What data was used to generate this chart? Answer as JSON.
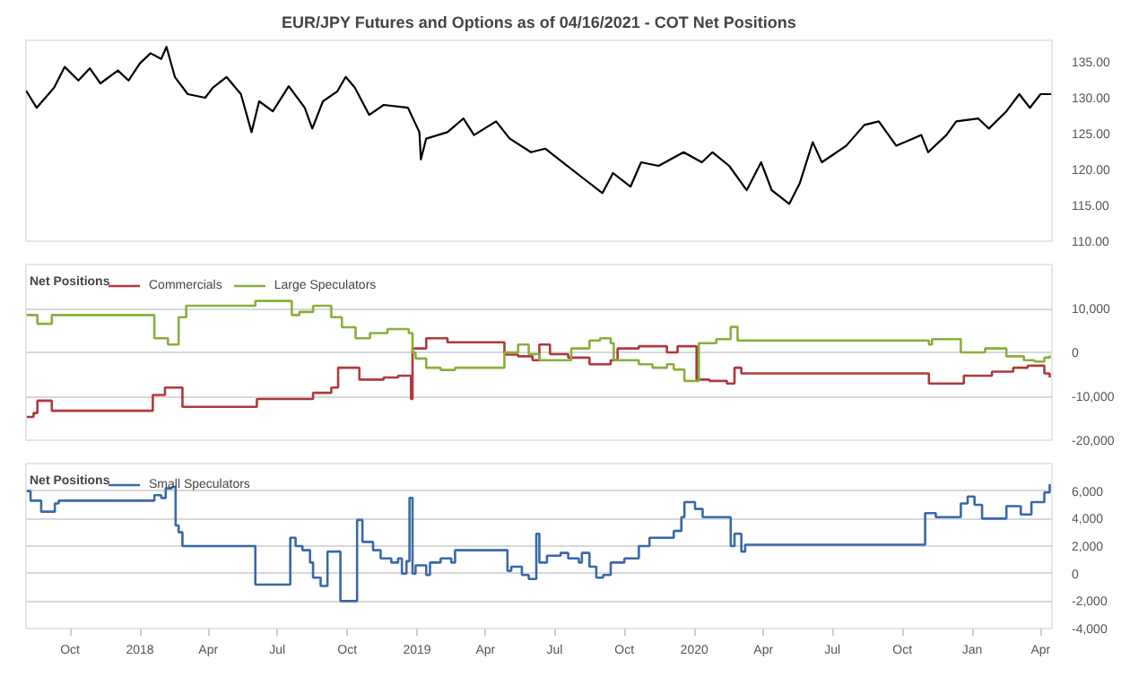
{
  "chart_data": [
    {
      "type": "line",
      "title": "EUR/JPY Futures and Options as of 04/16/2021 - COT Net Positions",
      "xlim": [
        "2017-08-04",
        "2021-04-16"
      ],
      "ylim": [
        110,
        138
      ],
      "yticks": [
        {
          "value": 110,
          "label": "110.00"
        },
        {
          "value": 115,
          "label": "115.00"
        },
        {
          "value": 120,
          "label": "120.00"
        },
        {
          "value": 125,
          "label": "125.00"
        },
        {
          "value": 130,
          "label": "130.00"
        },
        {
          "value": 135,
          "label": "135.00"
        }
      ],
      "tick_labels": "y",
      "grid": false,
      "x": [
        "2017-08-04",
        "2017-08-18",
        "2017-09-10",
        "2017-09-24",
        "2017-10-12",
        "2017-10-27",
        "2017-11-10",
        "2017-12-03",
        "2017-12-17",
        "2018-01-01",
        "2018-01-15",
        "2018-01-29",
        "2018-02-05",
        "2018-02-16",
        "2018-03-05",
        "2018-03-28",
        "2018-04-07",
        "2018-04-25",
        "2018-05-14",
        "2018-05-28",
        "2018-06-07",
        "2018-06-25",
        "2018-07-16",
        "2018-08-06",
        "2018-08-16",
        "2018-08-30",
        "2018-09-18",
        "2018-09-29",
        "2018-10-11",
        "2018-10-30",
        "2018-11-18",
        "2018-12-20",
        "2019-01-04",
        "2019-01-06",
        "2019-01-13",
        "2019-02-10",
        "2019-03-03",
        "2019-03-17",
        "2019-04-15",
        "2019-05-03",
        "2019-05-31",
        "2019-06-19",
        "2019-07-07",
        "2019-08-05",
        "2019-09-02",
        "2019-09-16",
        "2019-10-09",
        "2019-10-23",
        "2019-11-15",
        "2019-12-18",
        "2020-01-11",
        "2020-01-25",
        "2020-02-16",
        "2020-03-10",
        "2020-03-29",
        "2020-04-12",
        "2020-05-05",
        "2020-05-19",
        "2020-06-05",
        "2020-06-17",
        "2020-07-19",
        "2020-08-12",
        "2020-08-31",
        "2020-09-23",
        "2020-10-26",
        "2020-11-04",
        "2020-11-28",
        "2020-12-11",
        "2021-01-09",
        "2021-01-23",
        "2021-02-15",
        "2021-03-04",
        "2021-03-18",
        "2021-04-01",
        "2021-04-15"
      ],
      "series": [
        {
          "color": "#000000",
          "values": [
            131.0,
            128.6,
            131.4,
            134.3,
            132.4,
            134.1,
            132.0,
            133.8,
            132.4,
            134.8,
            136.2,
            135.4,
            137.1,
            132.9,
            130.5,
            130.0,
            131.4,
            132.9,
            130.5,
            125.2,
            129.5,
            128.1,
            131.6,
            128.6,
            125.7,
            129.5,
            130.9,
            132.9,
            131.4,
            127.6,
            129.0,
            128.6,
            125.2,
            121.4,
            124.3,
            125.2,
            127.1,
            124.8,
            126.7,
            124.3,
            122.4,
            122.9,
            121.4,
            119.0,
            116.7,
            119.5,
            117.6,
            121.0,
            120.5,
            122.4,
            121.0,
            122.4,
            120.5,
            117.1,
            121.0,
            117.1,
            115.2,
            118.1,
            123.8,
            121.0,
            123.3,
            126.2,
            126.7,
            123.3,
            124.8,
            122.4,
            124.8,
            126.7,
            127.1,
            125.7,
            128.1,
            130.5,
            128.6,
            130.5,
            130.5
          ]
        }
      ]
    },
    {
      "type": "step",
      "legend_title": "Net Positions",
      "legend": "top left",
      "grid": "y",
      "xlim": [
        "2017-08-04",
        "2021-04-16"
      ],
      "ylim": [
        -20000,
        20000
      ],
      "yticks": [
        {
          "value": -20000,
          "label": "-20,000"
        },
        {
          "value": -10000,
          "label": "-10,000"
        },
        0,
        {
          "value": 10000,
          "label": "10,000"
        },
        {
          "value": 20000,
          "label": null
        }
      ],
      "tick_labels": "y",
      "series": [
        {
          "name": "Commercials",
          "color": "#b0393b",
          "x": [
            "2017-08-05",
            "2017-08-14",
            "2017-08-19",
            "2017-09-07",
            "2018-01-18",
            "2018-02-03",
            "2018-02-26",
            "2018-06-04",
            "2018-08-17",
            "2018-09-10",
            "2018-09-19",
            "2018-10-17",
            "2018-11-18",
            "2018-12-07",
            "2018-12-24",
            "2018-12-26",
            "2019-01-13",
            "2019-02-10",
            "2019-04-26",
            "2019-05-14",
            "2019-06-02",
            "2019-06-11",
            "2019-06-25",
            "2019-07-19",
            "2019-08-16",
            "2019-09-13",
            "2019-09-22",
            "2019-10-20",
            "2019-11-26",
            "2019-12-10",
            "2020-01-04",
            "2020-01-21",
            "2020-02-13",
            "2020-02-23",
            "2020-03-03",
            "2020-11-05",
            "2020-12-21",
            "2021-01-27",
            "2021-02-24",
            "2021-03-15",
            "2021-04-06",
            "2021-04-13"
          ],
          "values": [
            -14700,
            -13800,
            -11000,
            -13300,
            -9700,
            -8000,
            -12400,
            -10600,
            -9200,
            -8000,
            -3500,
            -6200,
            -5700,
            -5300,
            -10600,
            900,
            3200,
            2300,
            -500,
            -900,
            -1800,
            1800,
            -400,
            -1200,
            -2700,
            -1800,
            900,
            1400,
            0,
            1400,
            -6200,
            -6500,
            -7100,
            -3500,
            -4800,
            -7100,
            -5300,
            -4400,
            -3500,
            -3000,
            -4800,
            -5700
          ]
        },
        {
          "name": "Large Speculators",
          "color": "#8aae3c",
          "x": [
            "2017-08-05",
            "2017-08-19",
            "2017-09-07",
            "2018-01-20",
            "2018-02-07",
            "2018-02-21",
            "2018-03-03",
            "2018-06-02",
            "2018-07-20",
            "2018-07-30",
            "2018-08-17",
            "2018-09-10",
            "2018-09-24",
            "2018-10-12",
            "2018-10-31",
            "2018-11-23",
            "2018-12-21",
            "2018-12-26",
            "2018-12-30",
            "2019-01-13",
            "2019-02-01",
            "2019-02-20",
            "2019-04-26",
            "2019-05-14",
            "2019-05-28",
            "2019-06-11",
            "2019-07-23",
            "2019-08-16",
            "2019-08-30",
            "2019-09-13",
            "2019-09-17",
            "2019-10-20",
            "2019-11-07",
            "2019-11-26",
            "2019-12-05",
            "2019-12-19",
            "2020-01-07",
            "2020-01-30",
            "2020-02-18",
            "2020-02-27",
            "2020-11-05",
            "2020-11-09",
            "2020-12-17",
            "2021-01-18",
            "2021-02-15",
            "2021-03-10",
            "2021-03-24",
            "2021-04-06",
            "2021-04-13"
          ],
          "values": [
            8500,
            6500,
            8500,
            3200,
            1800,
            8000,
            10600,
            11700,
            8500,
            9200,
            10600,
            8000,
            5700,
            3200,
            4400,
            5300,
            4400,
            0,
            -1400,
            -3500,
            -4000,
            -3500,
            0,
            1800,
            -400,
            -1800,
            900,
            2700,
            3200,
            2100,
            -1800,
            -2700,
            -3500,
            -2700,
            -3900,
            -6500,
            2100,
            3000,
            5800,
            2700,
            1800,
            3000,
            0,
            900,
            -900,
            -1800,
            -2100,
            -1200,
            -700
          ]
        }
      ]
    },
    {
      "type": "step",
      "legend_title": "Net Positions",
      "legend": "top left",
      "grid": "y",
      "xlim": [
        "2017-08-04",
        "2021-04-16"
      ],
      "ylim": [
        -4000,
        8000
      ],
      "yticks": [
        {
          "value": -4000,
          "label": "-4,000"
        },
        {
          "value": -2000,
          "label": "-2,000"
        },
        0,
        {
          "value": 2000,
          "label": "2,000"
        },
        {
          "value": 4000,
          "label": "4,000"
        },
        {
          "value": 6000,
          "label": "6,000"
        },
        {
          "value": 8000,
          "label": null
        }
      ],
      "xticks": [
        {
          "value": "2017-10-01",
          "label": "Oct"
        },
        {
          "value": "2018-01-01",
          "label": "2018"
        },
        {
          "value": "2018-04-01",
          "label": "Apr"
        },
        {
          "value": "2018-07-01",
          "label": "Jul"
        },
        {
          "value": "2018-10-01",
          "label": "Oct"
        },
        {
          "value": "2019-01-01",
          "label": "2019"
        },
        {
          "value": "2019-04-01",
          "label": "Apr"
        },
        {
          "value": "2019-07-01",
          "label": "Jul"
        },
        {
          "value": "2019-10-01",
          "label": "Oct"
        },
        {
          "value": "2020-01-01",
          "label": "2020"
        },
        {
          "value": "2020-04-01",
          "label": "Apr"
        },
        {
          "value": "2020-07-01",
          "label": "Jul"
        },
        {
          "value": "2020-10-01",
          "label": "Oct"
        },
        {
          "value": "2021-01-01",
          "label": "Jan"
        },
        {
          "value": "2021-04-01",
          "label": "Apr"
        }
      ],
      "series": [
        {
          "name": "Small Speculators",
          "color": "#3a68a8",
          "x": [
            "2017-08-05",
            "2017-08-10",
            "2017-08-24",
            "2017-09-11",
            "2017-09-16",
            "2018-01-20",
            "2018-01-29",
            "2018-02-04",
            "2018-02-12",
            "2018-02-17",
            "2018-02-21",
            "2018-02-26",
            "2018-06-02",
            "2018-07-18",
            "2018-07-25",
            "2018-08-03",
            "2018-08-13",
            "2018-08-17",
            "2018-08-27",
            "2018-09-05",
            "2018-09-22",
            "2018-10-14",
            "2018-10-21",
            "2018-11-04",
            "2018-11-14",
            "2018-11-28",
            "2018-12-07",
            "2018-12-12",
            "2018-12-18",
            "2018-12-22",
            "2018-12-26",
            "2018-12-30",
            "2019-01-13",
            "2019-01-18",
            "2019-02-01",
            "2019-02-15",
            "2019-02-20",
            "2019-04-30",
            "2019-05-05",
            "2019-05-19",
            "2019-05-28",
            "2019-06-07",
            "2019-06-11",
            "2019-06-21",
            "2019-07-09",
            "2019-07-19",
            "2019-08-02",
            "2019-08-06",
            "2019-08-16",
            "2019-08-25",
            "2019-09-03",
            "2019-09-13",
            "2019-10-01",
            "2019-10-20",
            "2019-11-03",
            "2019-12-05",
            "2019-12-15",
            "2019-12-19",
            "2020-01-02",
            "2020-01-12",
            "2020-02-18",
            "2020-02-23",
            "2020-03-03",
            "2020-03-08",
            "2020-10-31",
            "2020-11-14",
            "2020-12-17",
            "2020-12-26",
            "2021-01-04",
            "2021-01-14",
            "2021-02-15",
            "2021-03-06",
            "2021-03-20",
            "2021-04-06",
            "2021-04-13"
          ],
          "values": [
            6000,
            5300,
            4500,
            5100,
            5300,
            5700,
            5500,
            6200,
            6300,
            3500,
            3000,
            2000,
            -800,
            2600,
            2000,
            1700,
            800,
            -300,
            -900,
            1600,
            -2000,
            3900,
            2300,
            1700,
            1100,
            800,
            1100,
            0,
            900,
            5500,
            0,
            600,
            -100,
            800,
            1100,
            800,
            1700,
            200,
            500,
            -100,
            -400,
            2900,
            800,
            1300,
            1500,
            1100,
            800,
            1500,
            500,
            -300,
            -100,
            800,
            1100,
            2000,
            2600,
            3100,
            4100,
            5200,
            4700,
            4100,
            2000,
            2900,
            1600,
            2100,
            4400,
            4100,
            5100,
            5600,
            5000,
            4000,
            4900,
            4300,
            5200,
            5900,
            6500
          ]
        }
      ]
    }
  ]
}
